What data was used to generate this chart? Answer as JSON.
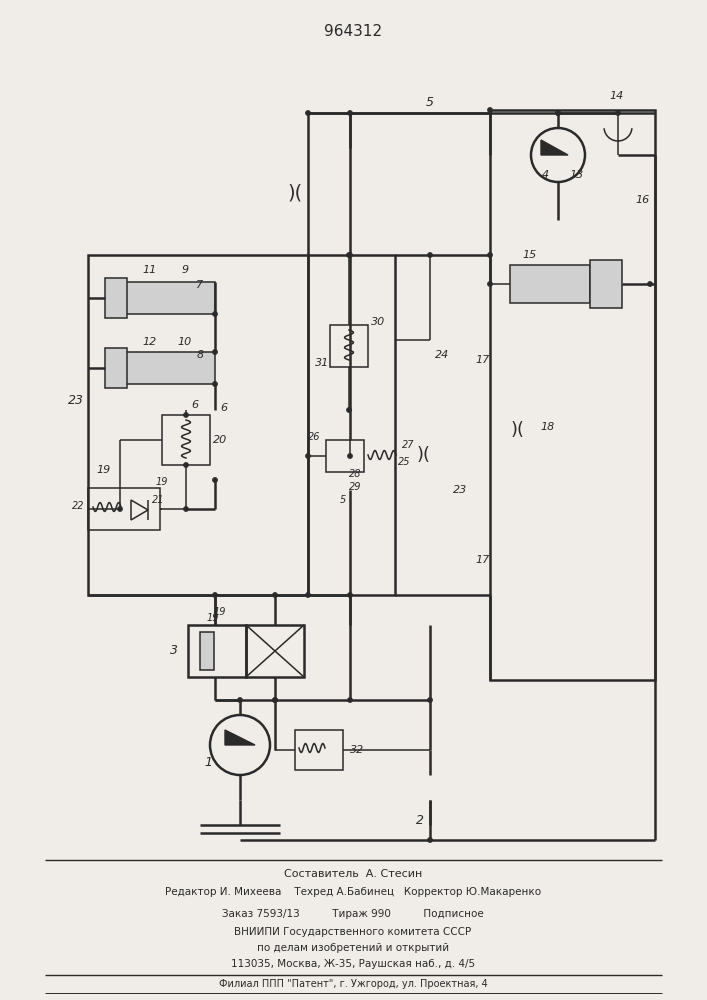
{
  "title": "964312",
  "bg_color": "#f0ede8",
  "line_color": "#2a2a2a",
  "footer": [
    "Составитель  А. Стесин",
    "Редактор И. Михеева    Техред А.Бабинец   Корректор Ю.Макаренко",
    "Заказ 7593/13          Тираж 990          Подписное",
    "ВНИИПИ Государственного комитета СССР",
    "по делам изобретений и открытий",
    "113035, Москва, Ж-35, Раушская наб., д. 4/5",
    "Филиал ППП \"Патент\", г. Ужгород, ул. Проектная, 4"
  ]
}
